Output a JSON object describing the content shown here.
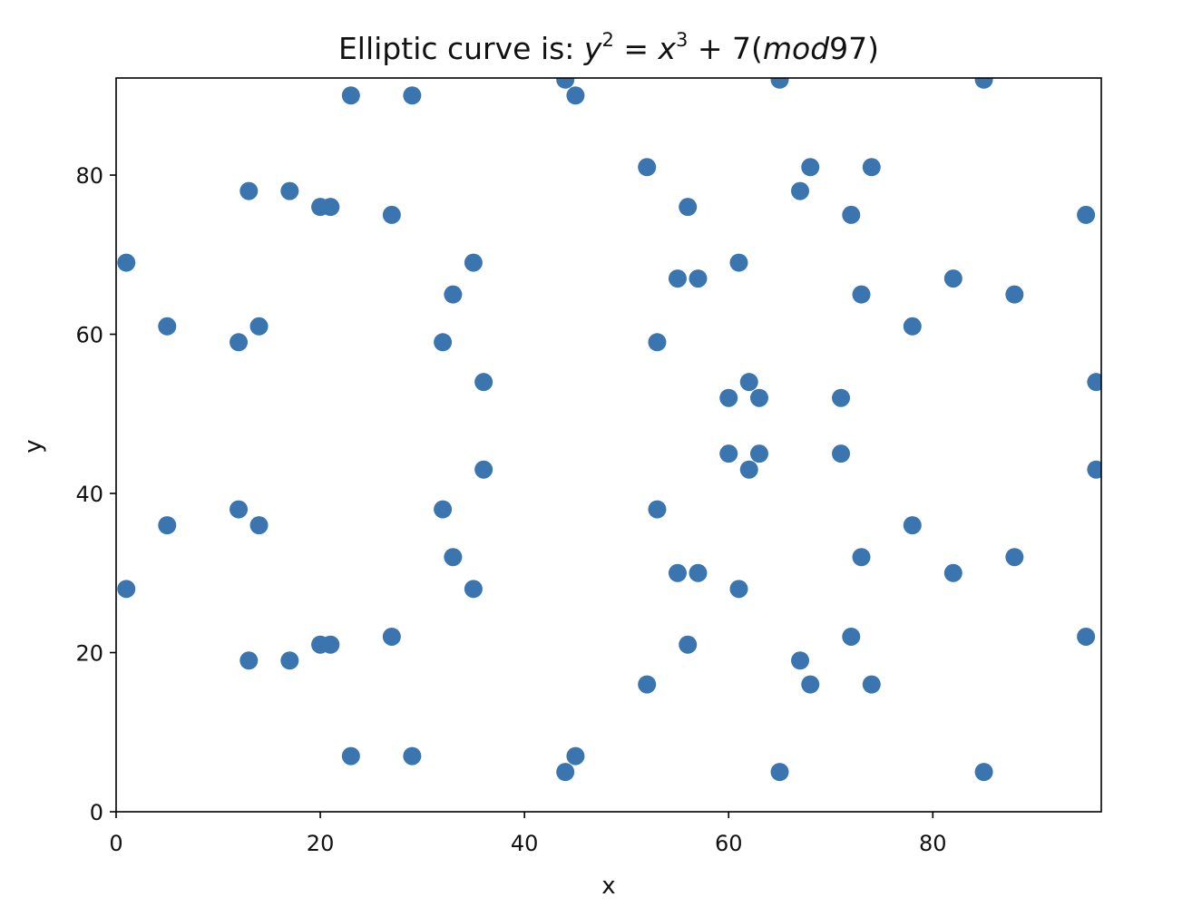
{
  "chart_data": {
    "type": "scatter",
    "title": {
      "prefix": "Elliptic curve is: ",
      "y": "y",
      "y_exp": "2",
      "eq": " = ",
      "x": "x",
      "x_exp": "3",
      "plus": " + 7(",
      "mod": "mod",
      "tail": "97)"
    },
    "xlabel": "x",
    "ylabel": "y",
    "xlim": [
      0,
      96.5
    ],
    "ylim": [
      0,
      92.2
    ],
    "xticks": [
      0,
      20,
      40,
      60,
      80
    ],
    "yticks": [
      0,
      20,
      40,
      60,
      80
    ],
    "grid": false,
    "marker_color": "#3b75af",
    "points": [
      [
        1,
        28
      ],
      [
        1,
        69
      ],
      [
        5,
        36
      ],
      [
        5,
        61
      ],
      [
        12,
        38
      ],
      [
        12,
        59
      ],
      [
        13,
        19
      ],
      [
        13,
        78
      ],
      [
        14,
        36
      ],
      [
        14,
        61
      ],
      [
        17,
        19
      ],
      [
        17,
        78
      ],
      [
        20,
        21
      ],
      [
        20,
        76
      ],
      [
        21,
        21
      ],
      [
        21,
        76
      ],
      [
        23,
        7
      ],
      [
        23,
        90
      ],
      [
        27,
        22
      ],
      [
        27,
        75
      ],
      [
        29,
        7
      ],
      [
        29,
        90
      ],
      [
        32,
        38
      ],
      [
        32,
        59
      ],
      [
        33,
        32
      ],
      [
        33,
        65
      ],
      [
        35,
        28
      ],
      [
        35,
        69
      ],
      [
        36,
        43
      ],
      [
        36,
        54
      ],
      [
        44,
        5
      ],
      [
        44,
        92
      ],
      [
        45,
        7
      ],
      [
        45,
        90
      ],
      [
        52,
        16
      ],
      [
        52,
        81
      ],
      [
        53,
        38
      ],
      [
        53,
        59
      ],
      [
        55,
        30
      ],
      [
        55,
        67
      ],
      [
        56,
        21
      ],
      [
        56,
        76
      ],
      [
        57,
        30
      ],
      [
        57,
        67
      ],
      [
        60,
        45
      ],
      [
        60,
        52
      ],
      [
        61,
        28
      ],
      [
        61,
        69
      ],
      [
        62,
        43
      ],
      [
        62,
        54
      ],
      [
        63,
        45
      ],
      [
        63,
        52
      ],
      [
        65,
        5
      ],
      [
        65,
        92
      ],
      [
        67,
        19
      ],
      [
        67,
        78
      ],
      [
        68,
        16
      ],
      [
        68,
        81
      ],
      [
        71,
        45
      ],
      [
        71,
        52
      ],
      [
        72,
        22
      ],
      [
        72,
        75
      ],
      [
        73,
        32
      ],
      [
        73,
        65
      ],
      [
        74,
        16
      ],
      [
        74,
        81
      ],
      [
        78,
        36
      ],
      [
        78,
        61
      ],
      [
        82,
        30
      ],
      [
        82,
        67
      ],
      [
        85,
        5
      ],
      [
        85,
        92
      ],
      [
        88,
        32
      ],
      [
        88,
        65
      ],
      [
        95,
        22
      ],
      [
        95,
        75
      ],
      [
        96,
        43
      ],
      [
        96,
        54
      ]
    ]
  }
}
